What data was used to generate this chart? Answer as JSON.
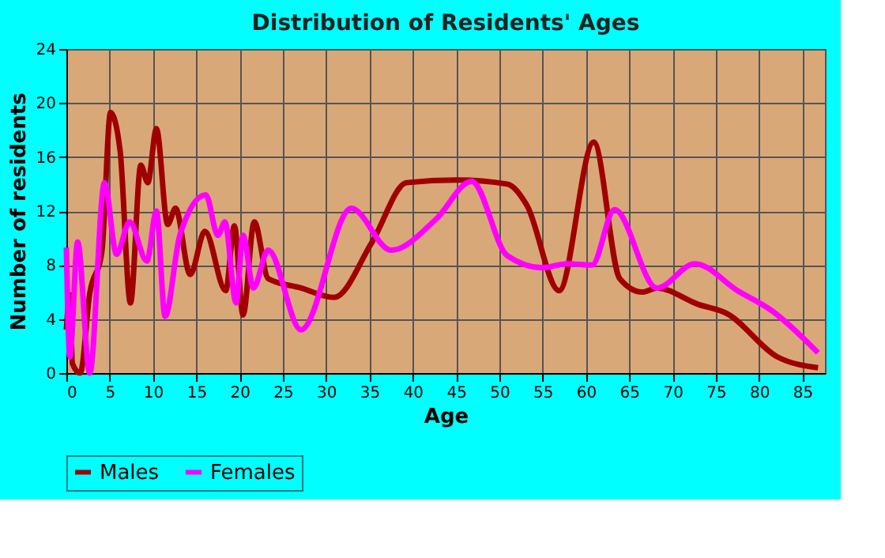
{
  "chart_data": {
    "type": "line",
    "title": "Distribution of Residents' Ages",
    "xlabel": "Age",
    "ylabel": "Number of residents",
    "xlim": [
      0,
      87.6
    ],
    "xticks": [
      0,
      5,
      10,
      15,
      20,
      25,
      30,
      35,
      40,
      45,
      50,
      55,
      60,
      65,
      70,
      75,
      80,
      85
    ],
    "ylim": [
      0,
      24
    ],
    "yticks": [
      0,
      4,
      8,
      12,
      16,
      20,
      24
    ],
    "grid": true,
    "legend": "bottom",
    "marker": "none",
    "line_style": "solid",
    "series": [
      {
        "name": "Males",
        "color": "#a00000",
        "x": [
          0,
          0.4,
          0.7,
          1.6,
          2.7,
          4.1,
          5.1,
          6.2,
          7.4,
          8.6,
          9.4,
          10.4,
          11.7,
          12.6,
          14.3,
          16.0,
          18.4,
          19.4,
          20.4,
          21.7,
          23.3,
          27.1,
          30.9,
          35.3,
          39.3,
          45.1,
          50.9,
          53.2,
          56.9,
          60.9,
          63.9,
          66.5,
          68.2,
          72.9,
          76.3,
          82.1,
          86.8
        ],
        "values": [
          3.2,
          5.8,
          0.7,
          0,
          5.9,
          9.0,
          19.3,
          16.5,
          5.2,
          15.4,
          14.1,
          18.1,
          11.0,
          12.2,
          7.3,
          10.5,
          6.1,
          10.9,
          4.3,
          11.2,
          7.0,
          6.3,
          5.6,
          9.7,
          14.1,
          14.3,
          14.0,
          12.4,
          6.1,
          17.1,
          7.0,
          6.0,
          6.3,
          5.1,
          4.4,
          1.2,
          0.4
        ]
      },
      {
        "name": "Females",
        "color": "#ff00ff",
        "x": [
          0,
          0.4,
          1.3,
          2.7,
          4.4,
          5.8,
          7.3,
          9.3,
          10.4,
          11.4,
          13.1,
          16.1,
          17.5,
          18.3,
          19.6,
          20.4,
          21.6,
          23.3,
          27.1,
          32.9,
          37.5,
          42.7,
          46.8,
          50.9,
          55.0,
          57.8,
          60.7,
          63.3,
          68.2,
          72.6,
          77.5,
          81.5,
          86.8
        ],
        "values": [
          9.3,
          1.2,
          9.7,
          0,
          14.1,
          8.8,
          11.2,
          8.3,
          12.0,
          4.2,
          10.2,
          13.2,
          10.2,
          11.2,
          5.2,
          10.2,
          6.3,
          9.1,
          3.2,
          12.2,
          9.1,
          11.4,
          14.2,
          8.7,
          7.8,
          8.1,
          8.0,
          12.1,
          6.3,
          8.1,
          6.1,
          4.6,
          1.5
        ]
      }
    ]
  }
}
